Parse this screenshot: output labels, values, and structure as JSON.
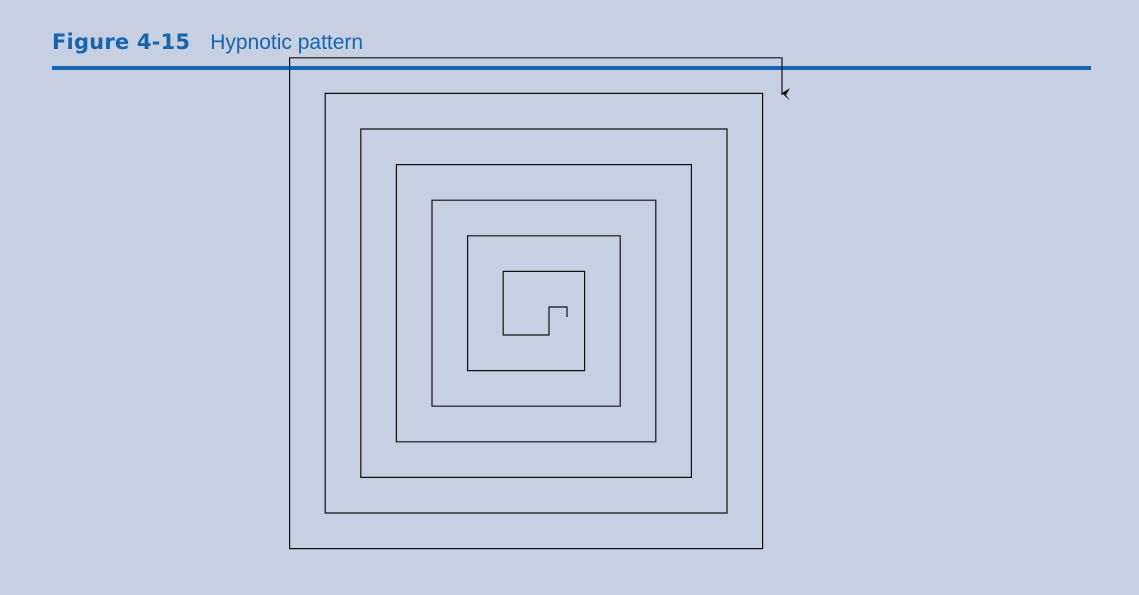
{
  "figure": {
    "number": "Figure 4-15",
    "caption": "Hypnotic pattern"
  },
  "colors": {
    "background": "#c7d0e2",
    "accent": "#1565b0",
    "line": "#111111"
  },
  "diagram": {
    "type": "square-spiral",
    "turtle_icon": "turtle-arrow-icon"
  }
}
